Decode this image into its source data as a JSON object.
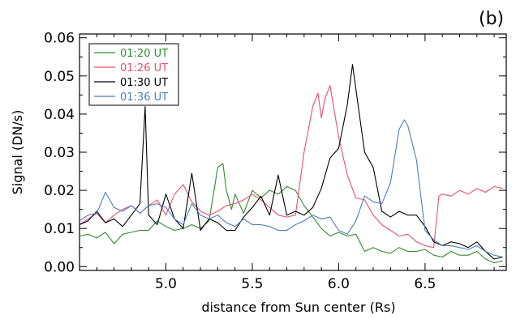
{
  "chart_data": {
    "type": "line",
    "panel_label": "(b)",
    "xlabel": "distance from Sun center (Rs)",
    "ylabel": "Signal (DN/s)",
    "xlim": [
      4.5,
      6.97
    ],
    "ylim": [
      -0.001,
      0.061
    ],
    "x_ticks": [
      5.0,
      5.5,
      6.0,
      6.5
    ],
    "x_tick_labels": [
      "5.0",
      "5.5",
      "6.0",
      "6.5"
    ],
    "y_ticks": [
      0.0,
      0.01,
      0.02,
      0.03,
      0.04,
      0.05,
      0.06
    ],
    "y_tick_labels": [
      "0.00",
      "0.01",
      "0.02",
      "0.03",
      "0.04",
      "0.05",
      "0.06"
    ],
    "legend_position": "top-left",
    "series": [
      {
        "name": "01:20 UT",
        "color": "#2e8b2e",
        "x": [
          4.5,
          4.55,
          4.6,
          4.65,
          4.7,
          4.75,
          4.8,
          4.85,
          4.9,
          4.95,
          5.0,
          5.05,
          5.1,
          5.15,
          5.2,
          5.25,
          5.3,
          5.33,
          5.35,
          5.38,
          5.4,
          5.45,
          5.5,
          5.55,
          5.6,
          5.65,
          5.7,
          5.75,
          5.8,
          5.85,
          5.9,
          5.95,
          6.0,
          6.05,
          6.1,
          6.15,
          6.2,
          6.25,
          6.3,
          6.35,
          6.4,
          6.45,
          6.5,
          6.55,
          6.6,
          6.65,
          6.7,
          6.75,
          6.8,
          6.85,
          6.9,
          6.95
        ],
        "values": [
          0.008,
          0.0085,
          0.0075,
          0.009,
          0.006,
          0.0085,
          0.009,
          0.0095,
          0.0095,
          0.012,
          0.0105,
          0.0095,
          0.01,
          0.011,
          0.01,
          0.012,
          0.026,
          0.027,
          0.02,
          0.015,
          0.019,
          0.014,
          0.02,
          0.018,
          0.02,
          0.019,
          0.021,
          0.02,
          0.016,
          0.013,
          0.01,
          0.008,
          0.009,
          0.008,
          0.0085,
          0.004,
          0.005,
          0.004,
          0.0035,
          0.005,
          0.004,
          0.004,
          0.0045,
          0.003,
          0.0025,
          0.004,
          0.003,
          0.003,
          0.004,
          0.002,
          0.001,
          0.0015
        ]
      },
      {
        "name": "01:26 UT",
        "color": "#e8506e",
        "x": [
          4.5,
          4.55,
          4.6,
          4.65,
          4.7,
          4.75,
          4.8,
          4.85,
          4.9,
          4.95,
          5.0,
          5.05,
          5.1,
          5.15,
          5.2,
          5.25,
          5.3,
          5.35,
          5.4,
          5.45,
          5.5,
          5.55,
          5.6,
          5.65,
          5.7,
          5.75,
          5.8,
          5.85,
          5.88,
          5.9,
          5.92,
          5.95,
          6.0,
          6.05,
          6.1,
          6.15,
          6.2,
          6.25,
          6.3,
          6.35,
          6.4,
          6.45,
          6.5,
          6.55,
          6.58,
          6.6,
          6.65,
          6.7,
          6.75,
          6.8,
          6.85,
          6.9,
          6.95
        ],
        "values": [
          0.011,
          0.0125,
          0.014,
          0.0115,
          0.0135,
          0.015,
          0.016,
          0.014,
          0.016,
          0.0175,
          0.0135,
          0.019,
          0.0215,
          0.017,
          0.0145,
          0.0135,
          0.0145,
          0.016,
          0.0165,
          0.0175,
          0.019,
          0.0175,
          0.0155,
          0.0135,
          0.013,
          0.0135,
          0.03,
          0.042,
          0.0455,
          0.039,
          0.044,
          0.0475,
          0.034,
          0.024,
          0.018,
          0.0175,
          0.0135,
          0.011,
          0.0095,
          0.008,
          0.0085,
          0.0065,
          0.0055,
          0.005,
          0.0185,
          0.019,
          0.0185,
          0.02,
          0.019,
          0.0205,
          0.0195,
          0.021,
          0.0205
        ]
      },
      {
        "name": "01:30 UT",
        "color": "#000000",
        "x": [
          4.5,
          4.55,
          4.6,
          4.65,
          4.7,
          4.75,
          4.8,
          4.85,
          4.88,
          4.9,
          4.95,
          5.0,
          5.05,
          5.1,
          5.15,
          5.2,
          5.25,
          5.3,
          5.35,
          5.4,
          5.45,
          5.5,
          5.55,
          5.6,
          5.65,
          5.7,
          5.75,
          5.8,
          5.85,
          5.9,
          5.95,
          6.0,
          6.05,
          6.08,
          6.1,
          6.15,
          6.2,
          6.25,
          6.3,
          6.35,
          6.4,
          6.45,
          6.5,
          6.55,
          6.6,
          6.65,
          6.7,
          6.75,
          6.8,
          6.85,
          6.9,
          6.95
        ],
        "values": [
          0.011,
          0.012,
          0.0145,
          0.0115,
          0.0125,
          0.0105,
          0.0135,
          0.0165,
          0.042,
          0.0135,
          0.011,
          0.019,
          0.0125,
          0.01,
          0.0245,
          0.0095,
          0.0125,
          0.0115,
          0.0095,
          0.0095,
          0.013,
          0.0155,
          0.0185,
          0.0135,
          0.024,
          0.0135,
          0.0145,
          0.0135,
          0.0155,
          0.0205,
          0.0285,
          0.031,
          0.0425,
          0.053,
          0.0465,
          0.03,
          0.026,
          0.0145,
          0.013,
          0.0145,
          0.0135,
          0.0135,
          0.0105,
          0.0065,
          0.0055,
          0.0065,
          0.006,
          0.005,
          0.0065,
          0.004,
          0.002,
          0.0025
        ]
      },
      {
        "name": "01:36 UT",
        "color": "#4a7fb8",
        "x": [
          4.5,
          4.55,
          4.6,
          4.65,
          4.7,
          4.75,
          4.8,
          4.85,
          4.9,
          4.95,
          5.0,
          5.05,
          5.1,
          5.15,
          5.2,
          5.25,
          5.3,
          5.35,
          5.4,
          5.45,
          5.5,
          5.55,
          5.6,
          5.65,
          5.7,
          5.75,
          5.8,
          5.85,
          5.9,
          5.95,
          6.0,
          6.05,
          6.1,
          6.15,
          6.2,
          6.25,
          6.3,
          6.35,
          6.38,
          6.4,
          6.45,
          6.5,
          6.55,
          6.6,
          6.65,
          6.7,
          6.75,
          6.8,
          6.85,
          6.9,
          6.95
        ],
        "values": [
          0.012,
          0.0135,
          0.014,
          0.0195,
          0.0155,
          0.0145,
          0.016,
          0.014,
          0.016,
          0.0165,
          0.0155,
          0.0125,
          0.011,
          0.0165,
          0.0135,
          0.0125,
          0.0135,
          0.0115,
          0.0105,
          0.0125,
          0.011,
          0.011,
          0.0105,
          0.0095,
          0.0095,
          0.011,
          0.012,
          0.0135,
          0.0125,
          0.013,
          0.0095,
          0.0085,
          0.012,
          0.0185,
          0.017,
          0.0165,
          0.022,
          0.036,
          0.0385,
          0.037,
          0.028,
          0.0095,
          0.007,
          0.0055,
          0.0055,
          0.005,
          0.0045,
          0.0055,
          0.004,
          0.003,
          0.0025
        ]
      }
    ]
  }
}
